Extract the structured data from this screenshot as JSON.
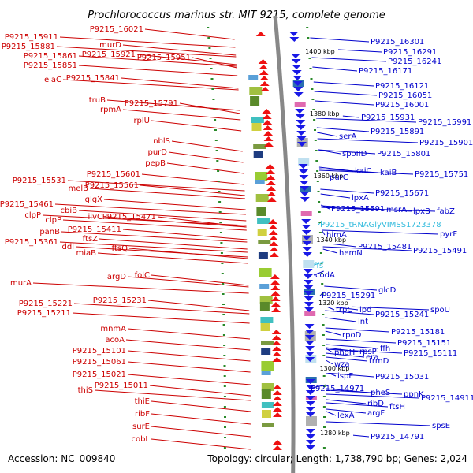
{
  "title": "Prochlorococcus marinus str. MIT 9215, complete genome",
  "accession": "Accession: NC_009840",
  "topology": "Topology: circular; Length: 1,738,790 bp; Genes: 2,024",
  "colors": {
    "left_label": "#cc0000",
    "right_label": "#0000cc",
    "trna_label": "#33bbdd",
    "backbone": "#888888",
    "tick": "#2a8a2a"
  },
  "kbp_markers": [
    "1400 kbp",
    "1380 kbp",
    "1360 kbp",
    "1340 kbp",
    "1320 kbp",
    "1300 kbp",
    "1280 kbp"
  ],
  "left_genes": [
    "P9215_16021",
    "P9215_15911",
    "P9215_15881",
    "murD",
    "P9215_15861",
    "P9215_15921",
    "P9215_15951",
    "P9215_15851",
    "elaC",
    "P9215_15841",
    "truB",
    "P9215_15791",
    "rpmA",
    "rplU",
    "nblS",
    "purD",
    "pepB",
    "P9215_15601",
    "P9215_15531",
    "P9215_15561",
    "melB",
    "glgX",
    "P9215_15461",
    "cbiB",
    "ilvC",
    "P9215_15471",
    "clpP",
    "clpP",
    "panB",
    "P9215_15411",
    "ftsZ",
    "P9215_15361",
    "ddl",
    "ftsQ",
    "miaB",
    "folC",
    "argD",
    "murA",
    "P9215_15231",
    "P9215_15221",
    "P9215_15211",
    "mnmA",
    "acoA",
    "P9215_15101",
    "P9215_15061",
    "P9215_15021",
    "P9215_15011",
    "thiS",
    "thiE",
    "ribF",
    "surE",
    "cobL"
  ],
  "right_genes": [
    "P9215_16301",
    "P9215_16291",
    "P9215_16241",
    "P9215_16171",
    "P9215_16121",
    "P9215_16051",
    "P9215_16001",
    "P9215_15931",
    "P9215_15991",
    "P9215_15891",
    "P9215_15901",
    "serA",
    "spoIID",
    "P9215_15801",
    "kaiC",
    "kaiB",
    "P9215_15751",
    "purC",
    "lpxA",
    "P9215_15671",
    "P9215_15591",
    "msrA",
    "lpxB",
    "fabZ",
    "P9215_tRNAGlyVIMSS1723378",
    "pyrF",
    "himA",
    "P9215_15481",
    "P9215_15491",
    "hemN",
    "ffs",
    "codA",
    "glcD",
    "P9215_15291",
    "spoU",
    "trpC",
    "lpd",
    "P9215_15241",
    "lnt",
    "P9215_15181",
    "rpoD",
    "P9215_15151",
    "ffh",
    "rpsP",
    "phoH",
    "P9215_15111",
    "era",
    "trmD",
    "wza",
    "P9215_15031",
    "ispF",
    "P9215_14971",
    "pheS",
    "ppnK",
    "P9215_14911",
    "ribD",
    "ftsH",
    "lexA",
    "argF",
    "spsE",
    "P9215_14791"
  ]
}
